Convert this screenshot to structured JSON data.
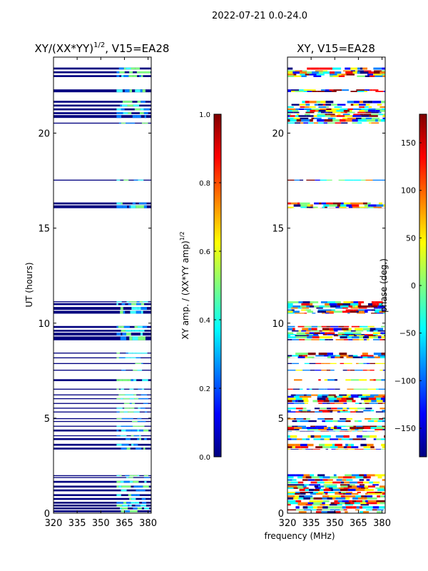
{
  "figure": {
    "suptitle": "2022-07-21 0.0-24.0",
    "xlabel": "frequency (MHz)"
  },
  "colors": {
    "jet": [
      "#00007f",
      "#0000ff",
      "#007fff",
      "#00ffff",
      "#7fff7f",
      "#ffff00",
      "#ff7f00",
      "#ff0000",
      "#7f0000"
    ],
    "low": "#00007f",
    "mid": "#7fff7f",
    "cyan": "#40ffff"
  },
  "chart_data": [
    {
      "type": "heatmap",
      "title_main": "XY/(XX*YY)",
      "title_sup": "1/2",
      "title_rest": ", V15=EA28",
      "ylabel": "UT (hours)",
      "xlim": [
        320,
        382
      ],
      "ylim": [
        0,
        24
      ],
      "xticks": [
        320,
        335,
        350,
        365,
        380
      ],
      "yticks": [
        0,
        5,
        10,
        15,
        20
      ],
      "bands": [
        [
          0.05,
          0.15
        ],
        [
          0.2,
          0.3
        ],
        [
          0.35,
          0.45
        ],
        [
          0.5,
          0.6
        ],
        [
          0.7,
          0.8
        ],
        [
          0.9,
          1.0
        ],
        [
          1.15,
          1.25
        ],
        [
          1.35,
          1.45
        ],
        [
          1.6,
          1.7
        ],
        [
          1.85,
          1.9
        ],
        [
          1.95,
          2.0
        ],
        [
          3.35,
          3.45
        ],
        [
          3.55,
          3.65
        ],
        [
          3.85,
          3.95
        ],
        [
          4.05,
          4.1
        ],
        [
          4.3,
          4.4
        ],
        [
          4.55,
          4.6
        ],
        [
          4.8,
          4.85
        ],
        [
          4.95,
          5.0
        ],
        [
          5.3,
          5.35
        ],
        [
          5.5,
          5.55
        ],
        [
          5.75,
          5.8
        ],
        [
          6.0,
          6.05
        ],
        [
          6.2,
          6.25
        ],
        [
          6.5,
          6.55
        ],
        [
          6.95,
          7.05
        ],
        [
          7.5,
          7.55
        ],
        [
          7.85,
          7.9
        ],
        [
          8.15,
          8.2
        ],
        [
          8.4,
          8.45
        ],
        [
          9.1,
          9.3
        ],
        [
          9.35,
          9.5
        ],
        [
          9.55,
          9.65
        ],
        [
          9.75,
          9.85
        ],
        [
          10.5,
          10.65
        ],
        [
          10.7,
          10.85
        ],
        [
          10.95,
          11.05
        ],
        [
          11.1,
          11.15
        ],
        [
          16.05,
          16.2
        ],
        [
          16.25,
          16.35
        ],
        [
          17.5,
          17.55
        ],
        [
          20.5,
          20.55
        ],
        [
          20.8,
          20.95
        ],
        [
          21.0,
          21.1
        ],
        [
          21.2,
          21.3
        ],
        [
          21.4,
          21.5
        ],
        [
          21.6,
          21.7
        ],
        [
          22.15,
          22.3
        ],
        [
          22.95,
          23.05
        ],
        [
          23.15,
          23.25
        ],
        [
          23.35,
          23.45
        ]
      ],
      "highlight_freq": [
        360,
        378
      ]
    },
    {
      "type": "heatmap",
      "title": "XY, V15=EA28",
      "xlim": [
        320,
        382
      ],
      "ylim": [
        0,
        24
      ],
      "xticks": [
        320,
        335,
        350,
        365,
        380
      ],
      "yticks": [
        0,
        5,
        10,
        15,
        20
      ],
      "bands": [
        [
          0.0,
          2.05
        ],
        [
          3.35,
          3.65
        ],
        [
          3.85,
          4.1
        ],
        [
          4.3,
          4.6
        ],
        [
          4.8,
          5.0
        ],
        [
          5.3,
          5.55
        ],
        [
          5.75,
          6.25
        ],
        [
          6.5,
          6.55
        ],
        [
          6.95,
          7.05
        ],
        [
          7.5,
          7.55
        ],
        [
          7.85,
          7.9
        ],
        [
          8.15,
          8.45
        ],
        [
          9.1,
          9.85
        ],
        [
          10.5,
          11.15
        ],
        [
          16.05,
          16.35
        ],
        [
          17.5,
          17.55
        ],
        [
          20.5,
          21.7
        ],
        [
          22.15,
          22.3
        ],
        [
          22.95,
          23.45
        ]
      ]
    },
    {
      "type": "colorbar",
      "label_main": "XY amp. / (XX*YY amp)",
      "label_sup": "1/2",
      "range": [
        0.0,
        1.0
      ],
      "ticks": [
        "0.0",
        "0.2",
        "0.4",
        "0.6",
        "0.8",
        "1.0"
      ]
    },
    {
      "type": "colorbar",
      "label": "phase (deg.)",
      "range": [
        -180,
        180
      ],
      "ticks": [
        "−150",
        "−100",
        "−50",
        "0",
        "50",
        "100",
        "150"
      ],
      "tick_values": [
        -150,
        -100,
        -50,
        0,
        50,
        100,
        150
      ]
    }
  ]
}
